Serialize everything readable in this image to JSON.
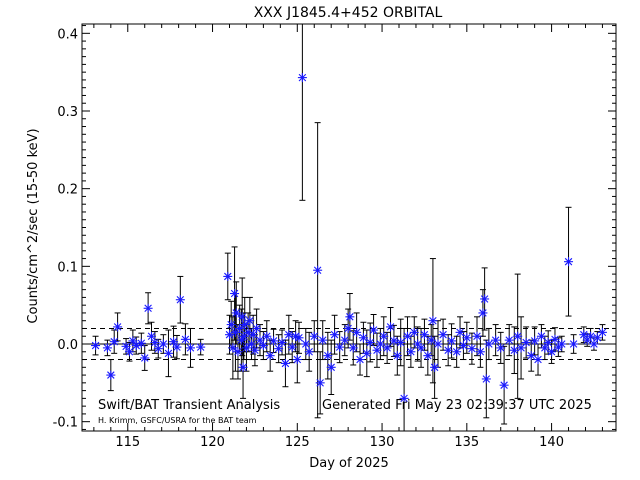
{
  "chart_data": {
    "type": "scatter",
    "title": "XXX J1845.4+452 ORBITAL",
    "xlabel": "Day of 2025",
    "ylabel": "Counts/cm^2/sec (15-50 keV)",
    "xlim": [
      112.3,
      143.8
    ],
    "ylim": [
      -0.112,
      0.412
    ],
    "xticks": [
      115,
      120,
      125,
      130,
      135,
      140
    ],
    "yticks": [
      -0.1,
      0.0,
      0.1,
      0.2,
      0.3,
      0.4
    ],
    "ytick_labels": [
      "-0.1",
      "0.0",
      "0.1",
      "0.2",
      "0.3",
      "0.4"
    ],
    "zero_line": 0.0,
    "dashed_lines": [
      0.02,
      -0.02
    ],
    "annotations": [
      "Swift/BAT Transient Analysis",
      "Generated Fri May 23 02:39:37 UTC 2025",
      "H. Krimm, GSFC/USRA for the BAT team"
    ],
    "marker_color": "#1a1aff",
    "errorbar_color": "#000000",
    "points": [
      [
        113.1,
        -0.002,
        0.012
      ],
      [
        113.8,
        -0.005,
        0.01
      ],
      [
        114.0,
        -0.04,
        0.02
      ],
      [
        114.2,
        0.003,
        0.015
      ],
      [
        114.4,
        0.022,
        0.018
      ],
      [
        114.9,
        -0.003,
        0.01
      ],
      [
        115.1,
        -0.01,
        0.012
      ],
      [
        115.3,
        0.004,
        0.014
      ],
      [
        115.5,
        -0.002,
        0.011
      ],
      [
        115.8,
        0.001,
        0.013
      ],
      [
        116.0,
        -0.018,
        0.016
      ],
      [
        116.2,
        0.046,
        0.02
      ],
      [
        116.4,
        0.01,
        0.018
      ],
      [
        116.6,
        0.002,
        0.014
      ],
      [
        116.8,
        -0.006,
        0.012
      ],
      [
        117.1,
        0.0,
        0.012
      ],
      [
        117.4,
        -0.012,
        0.03
      ],
      [
        117.7,
        0.003,
        0.02
      ],
      [
        117.9,
        -0.004,
        0.015
      ],
      [
        118.1,
        0.057,
        0.03
      ],
      [
        118.4,
        0.006,
        0.02
      ],
      [
        118.7,
        -0.005,
        0.025
      ],
      [
        119.3,
        -0.004,
        0.01
      ],
      [
        120.9,
        0.087,
        0.03
      ],
      [
        121.0,
        0.012,
        0.025
      ],
      [
        121.1,
        0.025,
        0.03
      ],
      [
        121.2,
        -0.005,
        0.04
      ],
      [
        121.3,
        0.065,
        0.06
      ],
      [
        121.35,
        0.015,
        0.05
      ],
      [
        121.4,
        0.04,
        0.04
      ],
      [
        121.5,
        -0.01,
        0.035
      ],
      [
        121.6,
        0.02,
        0.03
      ],
      [
        121.7,
        0.005,
        0.04
      ],
      [
        121.75,
        0.035,
        0.05
      ],
      [
        121.8,
        -0.03,
        0.04
      ],
      [
        121.85,
        0.01,
        0.03
      ],
      [
        121.9,
        0.025,
        0.035
      ],
      [
        122.0,
        -0.005,
        0.03
      ],
      [
        122.1,
        0.015,
        0.025
      ],
      [
        122.2,
        0.03,
        0.03
      ],
      [
        122.3,
        0.0,
        0.02
      ],
      [
        122.4,
        0.012,
        0.025
      ],
      [
        122.5,
        -0.008,
        0.02
      ],
      [
        122.6,
        0.02,
        0.025
      ],
      [
        122.8,
        0.005,
        0.02
      ],
      [
        123.0,
        -0.002,
        0.018
      ],
      [
        123.2,
        0.01,
        0.02
      ],
      [
        123.4,
        -0.015,
        0.02
      ],
      [
        123.6,
        0.004,
        0.015
      ],
      [
        123.9,
        -0.006,
        0.018
      ],
      [
        124.1,
        0.002,
        0.016
      ],
      [
        124.3,
        -0.025,
        0.03
      ],
      [
        124.5,
        0.012,
        0.025
      ],
      [
        124.7,
        -0.004,
        0.02
      ],
      [
        124.9,
        0.01,
        0.02
      ],
      [
        125.0,
        -0.02,
        0.03
      ],
      [
        125.1,
        0.008,
        0.02
      ],
      [
        125.3,
        0.343,
        0.158
      ],
      [
        125.5,
        0.0,
        0.02
      ],
      [
        125.7,
        -0.01,
        0.025
      ],
      [
        126.0,
        0.01,
        0.02
      ],
      [
        126.2,
        0.095,
        0.19
      ],
      [
        126.35,
        -0.05,
        0.04
      ],
      [
        126.5,
        0.005,
        0.025
      ],
      [
        126.8,
        -0.015,
        0.03
      ],
      [
        127.0,
        -0.03,
        0.035
      ],
      [
        127.2,
        0.012,
        0.025
      ],
      [
        127.5,
        -0.004,
        0.02
      ],
      [
        127.8,
        0.005,
        0.02
      ],
      [
        128.0,
        0.02,
        0.025
      ],
      [
        128.1,
        0.035,
        0.03
      ],
      [
        128.3,
        -0.005,
        0.022
      ],
      [
        128.5,
        0.015,
        0.025
      ],
      [
        128.7,
        -0.02,
        0.02
      ],
      [
        128.9,
        0.008,
        0.02
      ],
      [
        129.1,
        -0.012,
        0.03
      ],
      [
        129.3,
        0.002,
        0.025
      ],
      [
        129.5,
        0.018,
        0.02
      ],
      [
        129.7,
        -0.008,
        0.022
      ],
      [
        129.9,
        0.0,
        0.02
      ],
      [
        130.1,
        0.01,
        0.025
      ],
      [
        130.3,
        -0.005,
        0.02
      ],
      [
        130.5,
        0.022,
        0.025
      ],
      [
        130.7,
        0.004,
        0.02
      ],
      [
        130.9,
        -0.015,
        0.025
      ],
      [
        131.1,
        0.002,
        0.03
      ],
      [
        131.3,
        -0.07,
        0.09
      ],
      [
        131.5,
        0.01,
        0.025
      ],
      [
        131.7,
        -0.01,
        0.02
      ],
      [
        131.9,
        0.015,
        0.02
      ],
      [
        132.1,
        0.0,
        0.022
      ],
      [
        132.3,
        -0.005,
        0.025
      ],
      [
        132.5,
        0.012,
        0.02
      ],
      [
        132.7,
        -0.015,
        0.025
      ],
      [
        132.9,
        0.005,
        0.02
      ],
      [
        133.0,
        0.03,
        0.08
      ],
      [
        133.1,
        -0.03,
        0.04
      ],
      [
        133.3,
        0.0,
        0.03
      ],
      [
        133.6,
        0.012,
        0.02
      ],
      [
        133.9,
        -0.008,
        0.02
      ],
      [
        134.1,
        0.004,
        0.022
      ],
      [
        134.4,
        -0.01,
        0.02
      ],
      [
        134.6,
        0.015,
        0.02
      ],
      [
        134.8,
        -0.002,
        0.018
      ],
      [
        135.0,
        0.008,
        0.02
      ],
      [
        135.3,
        -0.006,
        0.02
      ],
      [
        135.6,
        0.01,
        0.025
      ],
      [
        135.8,
        -0.01,
        0.02
      ],
      [
        135.95,
        0.04,
        0.03
      ],
      [
        136.05,
        0.058,
        0.04
      ],
      [
        136.15,
        -0.045,
        0.05
      ],
      [
        136.3,
        0.0,
        0.02
      ],
      [
        136.7,
        0.005,
        0.02
      ],
      [
        137.0,
        -0.005,
        0.02
      ],
      [
        137.2,
        -0.053,
        0.05
      ],
      [
        137.5,
        0.005,
        0.02
      ],
      [
        137.8,
        -0.008,
        0.03
      ],
      [
        138.0,
        0.01,
        0.08
      ],
      [
        138.2,
        -0.005,
        0.04
      ],
      [
        138.5,
        0.002,
        0.02
      ],
      [
        138.8,
        -0.015,
        0.02
      ],
      [
        139.0,
        0.004,
        0.018
      ],
      [
        139.2,
        -0.02,
        0.02
      ],
      [
        139.4,
        0.01,
        0.015
      ],
      [
        139.6,
        -0.005,
        0.015
      ],
      [
        139.8,
        0.002,
        0.015
      ],
      [
        140.0,
        -0.01,
        0.015
      ],
      [
        140.2,
        0.006,
        0.015
      ],
      [
        140.4,
        -0.004,
        0.012
      ],
      [
        140.6,
        0.0,
        0.01
      ],
      [
        141.0,
        0.106,
        0.07
      ],
      [
        141.3,
        0.0,
        0.012
      ],
      [
        141.9,
        0.012,
        0.01
      ],
      [
        142.1,
        0.005,
        0.008
      ],
      [
        142.3,
        0.01,
        0.01
      ],
      [
        142.5,
        0.0,
        0.008
      ],
      [
        142.7,
        0.008,
        0.008
      ],
      [
        143.0,
        0.015,
        0.01
      ]
    ]
  }
}
